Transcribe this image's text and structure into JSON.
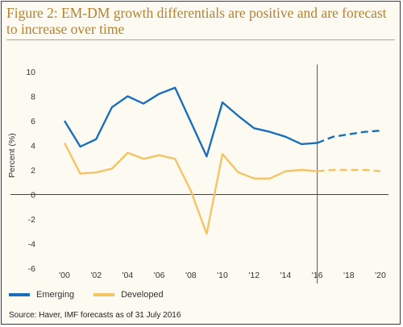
{
  "title": "Figure 2: EM-DM growth differentials are positive and are forecast to increase over time",
  "source": "Source: Haver, IMF forecasts as of 31 July 2016",
  "colors": {
    "emerging": "#1b6fba",
    "developed": "#f4c464",
    "divider": "#555555",
    "title": "#b5822f"
  },
  "chart_data": {
    "type": "line",
    "ylabel": "Percent (%)",
    "xlabel": "",
    "ylim": [
      -6,
      10
    ],
    "xlim": [
      2000,
      2020
    ],
    "yticks": [
      10,
      8,
      6,
      4,
      2,
      0,
      -2,
      -4,
      -6
    ],
    "xticks": [
      {
        "value": 2000,
        "label": "'00"
      },
      {
        "value": 2002,
        "label": "'02"
      },
      {
        "value": 2004,
        "label": "'04"
      },
      {
        "value": 2006,
        "label": "'06"
      },
      {
        "value": 2008,
        "label": "'08"
      },
      {
        "value": 2010,
        "label": "'10"
      },
      {
        "value": 2012,
        "label": "'12"
      },
      {
        "value": 2014,
        "label": "'14"
      },
      {
        "value": 2016,
        "label": "'16"
      },
      {
        "value": 2018,
        "label": "'18"
      },
      {
        "value": 2020,
        "label": "'20"
      }
    ],
    "forecast_start": 2016,
    "grid": false,
    "legend_position": "bottom",
    "series": [
      {
        "name": "Emerging",
        "color": "#1b6fba",
        "actual": {
          "x": [
            2000,
            2001,
            2002,
            2003,
            2004,
            2005,
            2006,
            2007,
            2008,
            2009,
            2010,
            2011,
            2012,
            2013,
            2014,
            2015,
            2016
          ],
          "y": [
            6.0,
            3.9,
            4.5,
            7.1,
            8.0,
            7.4,
            8.2,
            8.7,
            5.9,
            3.1,
            7.5,
            6.4,
            5.4,
            5.1,
            4.7,
            4.1,
            4.2
          ]
        },
        "forecast": {
          "x": [
            2016,
            2017,
            2018,
            2019,
            2020
          ],
          "y": [
            4.2,
            4.7,
            4.9,
            5.1,
            5.2
          ]
        }
      },
      {
        "name": "Developed",
        "color": "#f4c464",
        "actual": {
          "x": [
            2000,
            2001,
            2002,
            2003,
            2004,
            2005,
            2006,
            2007,
            2008,
            2009,
            2010,
            2011,
            2012,
            2013,
            2014,
            2015,
            2016
          ],
          "y": [
            4.2,
            1.7,
            1.8,
            2.1,
            3.4,
            2.9,
            3.2,
            2.9,
            0.3,
            -3.2,
            3.3,
            1.8,
            1.3,
            1.3,
            1.9,
            2.0,
            1.9
          ]
        },
        "forecast": {
          "x": [
            2016,
            2017,
            2018,
            2019,
            2020
          ],
          "y": [
            1.9,
            2.0,
            2.0,
            2.0,
            1.9
          ]
        }
      }
    ]
  }
}
